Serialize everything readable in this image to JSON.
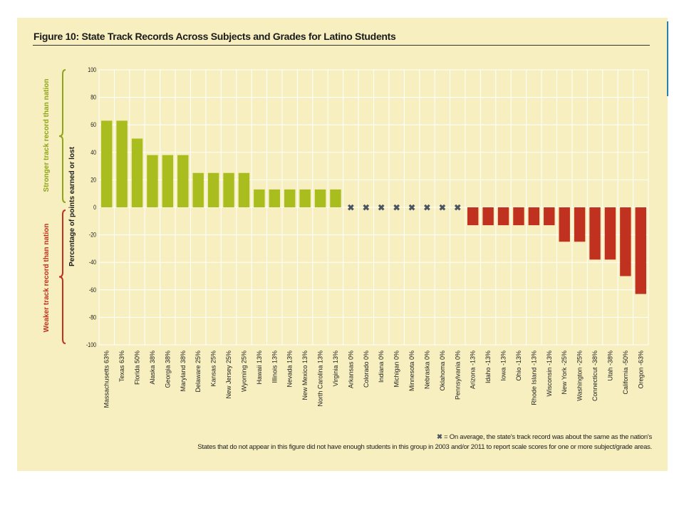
{
  "figure_title": "Figure 10: State Track Records Across Subjects and Grades for Latino Students",
  "footnote_line1": "= On average, the state's track record was about the same as the nation's",
  "footnote_marker": "✖",
  "footnote_line2": "States that do not appear in this figure did not have enough students in this group in 2003 and/or 2011 to report scale scores for one or more subject/grade areas.",
  "colors": {
    "positive": "#a9bd1f",
    "negative": "#c0311f",
    "same": "#4a5560",
    "background": "#f7efbf",
    "stronger_label": "#8fa51a",
    "weaker_label": "#c0311f"
  },
  "chart_data": {
    "type": "bar",
    "title": "Figure 10: State Track Records Across Subjects and Grades for Latino Students",
    "ylabel": "Percentage of points earned or lost",
    "ylim": [
      -100,
      100
    ],
    "yticks": [
      100,
      80,
      60,
      40,
      20,
      0,
      -20,
      -40,
      -60,
      -80,
      -100
    ],
    "grid": true,
    "bracket_labels": {
      "upper": "Stronger track record than nation",
      "lower": "Weaker track record than nation"
    },
    "categories": [
      "Massachusetts 63%",
      "Texas 63%",
      "Florida 50%",
      "Alaska 38%",
      "Georgia 38%",
      "Maryland 38%",
      "Delaware 25%",
      "Kansas 25%",
      "New Jersey 25%",
      "Wyoming 25%",
      "Hawaii 13%",
      "Illinois 13%",
      "Nevada 13%",
      "New Mexico 13%",
      "North Carolina 13%",
      "Virginia 13%",
      "Arkansas 0%",
      "Colorado 0%",
      "Indiana 0%",
      "Michigan 0%",
      "Minnesota 0%",
      "Nebraska 0%",
      "Oklahoma 0%",
      "Pennsylvania 0%",
      "Arizona -13%",
      "Idaho -13%",
      "Iowa -13%",
      "Ohio -13%",
      "Rhode Island -13%",
      "Wisconsin -13%",
      "New York -25%",
      "Washington -25%",
      "Connecticut -38%",
      "Utah -38%",
      "California -50%",
      "Oregon -63%"
    ],
    "values": [
      63,
      63,
      50,
      38,
      38,
      38,
      25,
      25,
      25,
      25,
      13,
      13,
      13,
      13,
      13,
      13,
      0,
      0,
      0,
      0,
      0,
      0,
      0,
      0,
      -13,
      -13,
      -13,
      -13,
      -13,
      -13,
      -25,
      -25,
      -38,
      -38,
      -50,
      -63
    ]
  }
}
